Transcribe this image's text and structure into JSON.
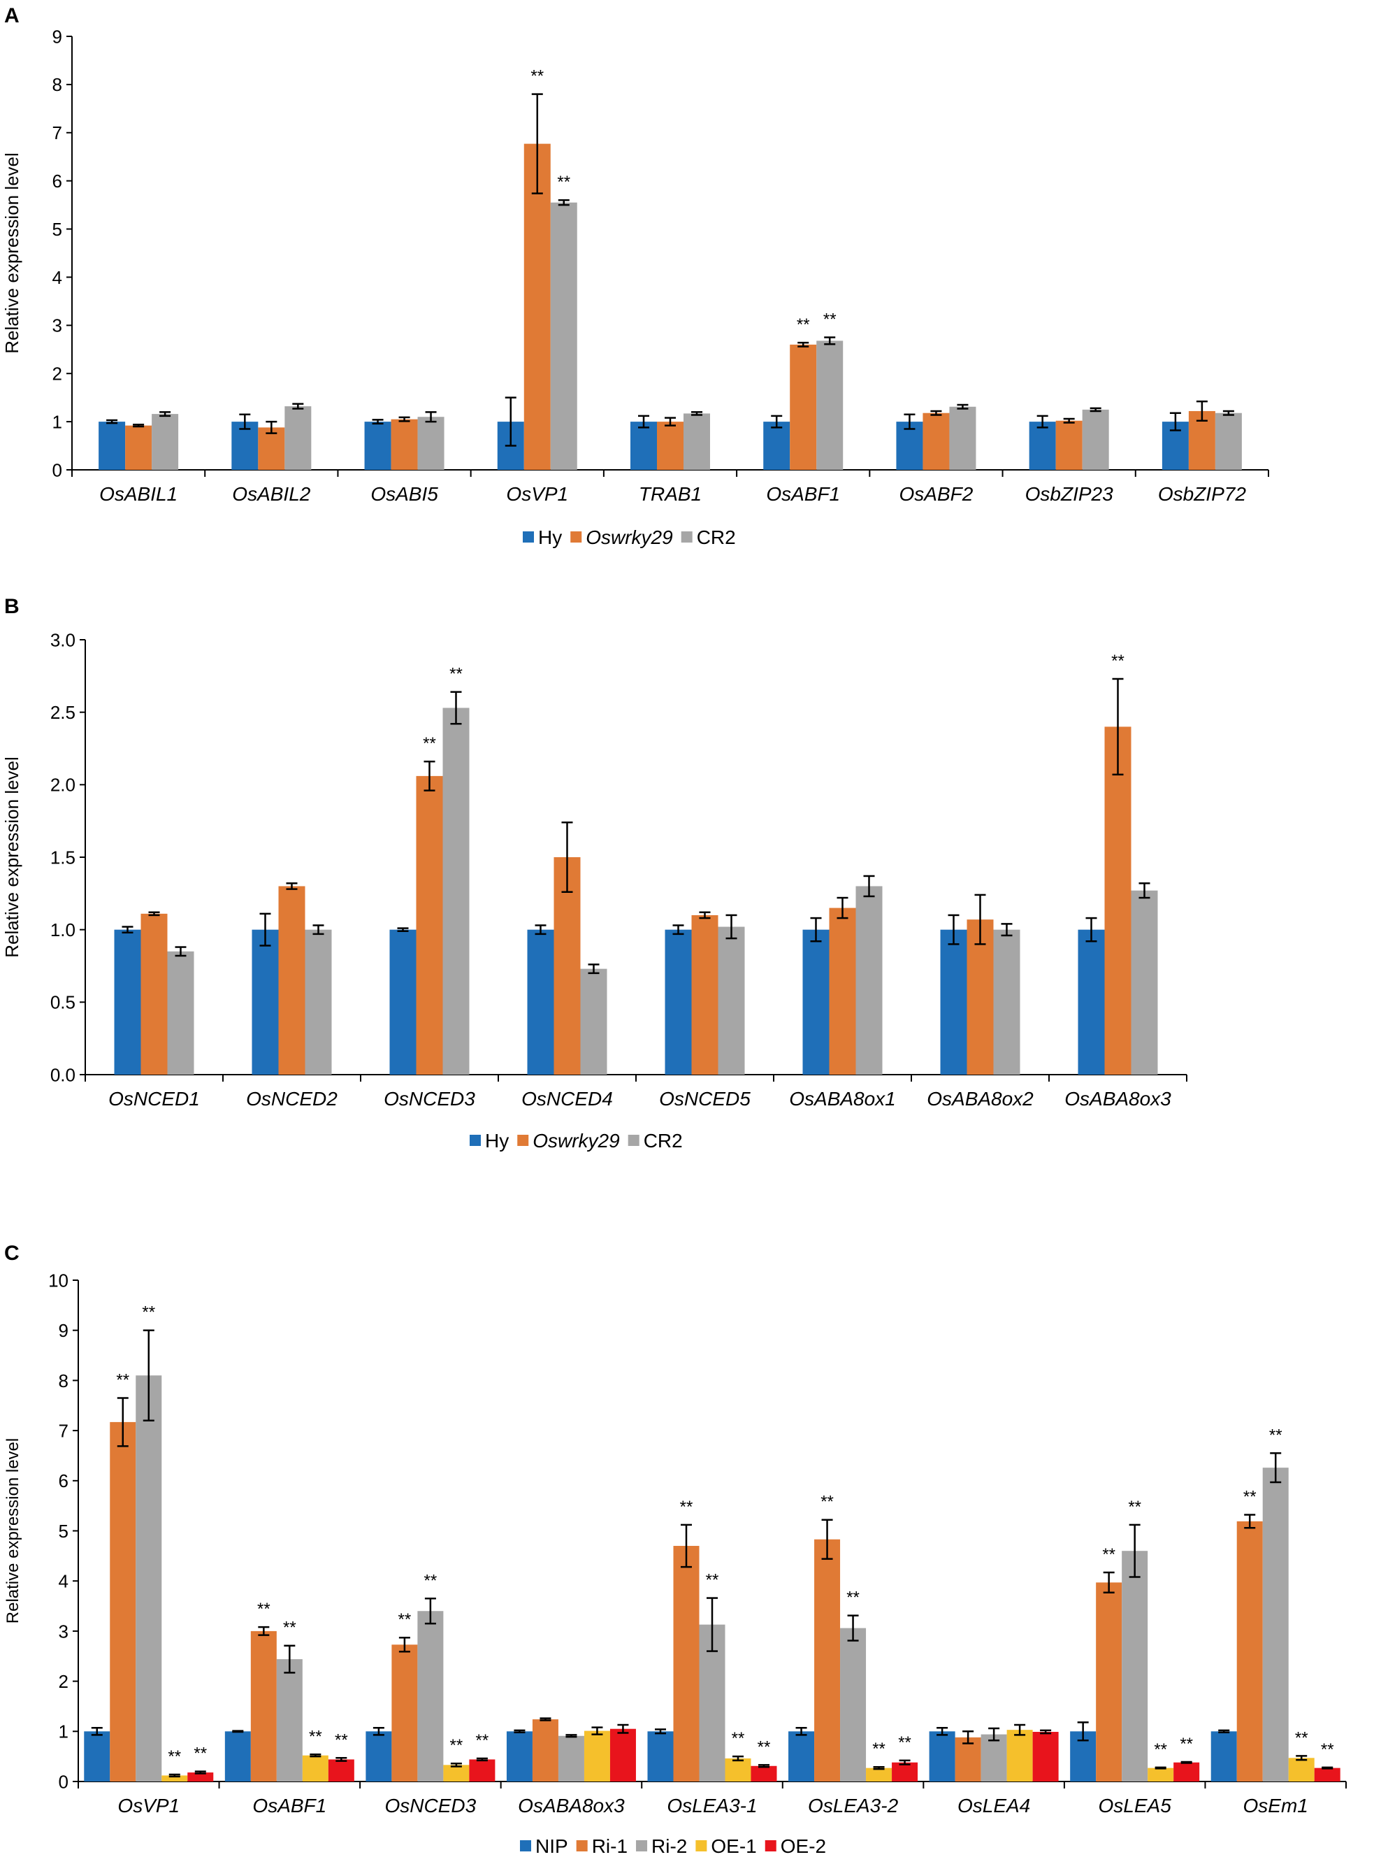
{
  "colors": {
    "Hy": "#1f6fb8",
    "Oswrky29": "#e07a35",
    "CR2": "#a6a6a6",
    "NIP": "#1f6fb8",
    "Ri-1": "#e07a35",
    "Ri-2": "#a6a6a6",
    "OE-1": "#f5c02c",
    "OE-2": "#e8141c",
    "axis": "#000000",
    "text": "#000000"
  },
  "chart_data": [
    {
      "panel": "A",
      "type": "bar",
      "ylabel": "Relative expression level",
      "ylim": [
        0,
        9
      ],
      "yticks": [
        "0",
        "1",
        "2",
        "3",
        "4",
        "5",
        "6",
        "7",
        "8",
        "9"
      ],
      "grid": false,
      "legend_position": "bottom",
      "categories": [
        "OsABIL1",
        "OsABIL2",
        "OsABI5",
        "OsVP1",
        "TRAB1",
        "OsABF1",
        "OsABF2",
        "OsbZIP23",
        "OsbZIP72"
      ],
      "series": [
        {
          "name": "Hy",
          "italic": false,
          "values": [
            1.0,
            1.0,
            1.0,
            1.0,
            1.0,
            1.0,
            1.0,
            1.0,
            1.0
          ],
          "err": [
            0.03,
            0.15,
            0.04,
            0.5,
            0.12,
            0.12,
            0.15,
            0.12,
            0.18
          ],
          "sig": [
            "",
            "",
            "",
            "",
            "",
            "",
            "",
            "",
            ""
          ]
        },
        {
          "name": "Oswrky29",
          "italic": true,
          "values": [
            0.92,
            0.88,
            1.05,
            6.77,
            1.0,
            2.6,
            1.18,
            1.02,
            1.22
          ],
          "err": [
            0.02,
            0.12,
            0.04,
            1.03,
            0.08,
            0.04,
            0.04,
            0.04,
            0.2
          ],
          "sig": [
            "",
            "",
            "",
            "**",
            "",
            "**",
            "",
            "",
            ""
          ]
        },
        {
          "name": "CR2",
          "italic": false,
          "values": [
            1.16,
            1.32,
            1.1,
            5.55,
            1.17,
            2.68,
            1.31,
            1.25,
            1.18
          ],
          "err": [
            0.04,
            0.05,
            0.1,
            0.05,
            0.03,
            0.07,
            0.04,
            0.03,
            0.04
          ],
          "sig": [
            "",
            "",
            "",
            "**",
            "",
            "**",
            "",
            "",
            ""
          ]
        }
      ]
    },
    {
      "panel": "B",
      "type": "bar",
      "ylabel": "Relative expression level",
      "ylim": [
        0,
        3
      ],
      "yticks": [
        "0.0",
        "0.5",
        "1.0",
        "1.5",
        "2.0",
        "2.5",
        "3.0"
      ],
      "grid": false,
      "legend_position": "bottom",
      "categories": [
        "OsNCED1",
        "OsNCED2",
        "OsNCED3",
        "OsNCED4",
        "OsNCED5",
        "OsABA8ox1",
        "OsABA8ox2",
        "OsABA8ox3"
      ],
      "series": [
        {
          "name": "Hy",
          "italic": false,
          "values": [
            1.0,
            1.0,
            1.0,
            1.0,
            1.0,
            1.0,
            1.0,
            1.0
          ],
          "err": [
            0.02,
            0.11,
            0.01,
            0.03,
            0.03,
            0.08,
            0.1,
            0.08
          ],
          "sig": [
            "",
            "",
            "",
            "",
            "",
            "",
            "",
            ""
          ]
        },
        {
          "name": "Oswrky29",
          "italic": true,
          "values": [
            1.11,
            1.3,
            2.06,
            1.5,
            1.1,
            1.15,
            1.07,
            2.4
          ],
          "err": [
            0.01,
            0.02,
            0.1,
            0.24,
            0.02,
            0.07,
            0.17,
            0.33
          ],
          "sig": [
            "",
            "",
            "**",
            "",
            "",
            "",
            "",
            "**"
          ]
        },
        {
          "name": "CR2",
          "italic": false,
          "values": [
            0.85,
            1.0,
            2.53,
            0.73,
            1.02,
            1.3,
            1.0,
            1.27
          ],
          "err": [
            0.03,
            0.03,
            0.11,
            0.03,
            0.08,
            0.07,
            0.04,
            0.05
          ],
          "sig": [
            "",
            "",
            "**",
            "",
            "",
            "",
            "",
            ""
          ]
        }
      ]
    },
    {
      "panel": "C",
      "type": "bar",
      "ylabel": "Relative expression level",
      "ylim": [
        0,
        10
      ],
      "yticks": [
        "0",
        "1",
        "2",
        "3",
        "4",
        "5",
        "6",
        "7",
        "8",
        "9",
        "10"
      ],
      "grid": false,
      "legend_position": "bottom",
      "categories": [
        "OsVP1",
        "OsABF1",
        "OsNCED3",
        "OsABA8ox3",
        "OsLEA3-1",
        "OsLEA3-2",
        "OsLEA4",
        "OsLEA5",
        "OsEm1"
      ],
      "series": [
        {
          "name": "NIP",
          "italic": false,
          "values": [
            1.0,
            1.0,
            1.0,
            1.0,
            1.0,
            1.0,
            1.0,
            1.0,
            1.0
          ],
          "err": [
            0.07,
            0.01,
            0.07,
            0.02,
            0.04,
            0.07,
            0.07,
            0.18,
            0.02
          ],
          "sig": [
            "",
            "",
            "",
            "",
            "",
            "",
            "",
            "",
            ""
          ]
        },
        {
          "name": "Ri-1",
          "italic": false,
          "values": [
            7.17,
            3.0,
            2.73,
            1.24,
            4.7,
            4.83,
            0.88,
            3.97,
            5.19
          ],
          "err": [
            0.48,
            0.08,
            0.14,
            0.02,
            0.42,
            0.39,
            0.12,
            0.2,
            0.13
          ],
          "sig": [
            "**",
            "**",
            "**",
            "",
            "**",
            "**",
            "",
            "**",
            "**"
          ]
        },
        {
          "name": "Ri-2",
          "italic": false,
          "values": [
            8.1,
            2.44,
            3.4,
            0.91,
            3.13,
            3.06,
            0.94,
            4.6,
            6.26
          ],
          "err": [
            0.9,
            0.27,
            0.25,
            0.02,
            0.53,
            0.25,
            0.12,
            0.52,
            0.29
          ],
          "sig": [
            "**",
            "**",
            "**",
            "",
            "**",
            "**",
            "",
            "**",
            "**"
          ]
        },
        {
          "name": "OE-1",
          "italic": false,
          "values": [
            0.12,
            0.52,
            0.33,
            1.01,
            0.46,
            0.27,
            1.03,
            0.27,
            0.47
          ],
          "err": [
            0.02,
            0.02,
            0.03,
            0.07,
            0.04,
            0.02,
            0.1,
            0.01,
            0.04
          ],
          "sig": [
            "**",
            "**",
            "**",
            "",
            "**",
            "**",
            "",
            "**",
            "**"
          ]
        },
        {
          "name": "OE-2",
          "italic": false,
          "values": [
            0.18,
            0.44,
            0.44,
            1.05,
            0.31,
            0.38,
            0.99,
            0.38,
            0.27
          ],
          "err": [
            0.02,
            0.03,
            0.02,
            0.08,
            0.02,
            0.04,
            0.03,
            0.01,
            0.01
          ],
          "sig": [
            "**",
            "**",
            "**",
            "",
            "**",
            "**",
            "",
            "**",
            "**"
          ]
        }
      ]
    }
  ]
}
